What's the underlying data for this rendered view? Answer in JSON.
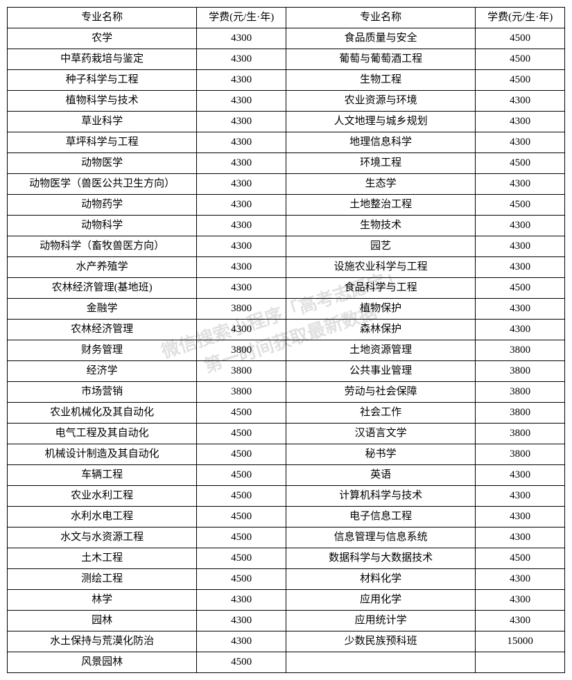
{
  "table": {
    "headers": {
      "name": "专业名称",
      "fee": "学费(元/生·年)"
    },
    "border_color": "#000000",
    "bg_color": "#ffffff",
    "font_size": 15,
    "rows": [
      {
        "l_name": "农学",
        "l_fee": "4300",
        "r_name": "食品质量与安全",
        "r_fee": "4500"
      },
      {
        "l_name": "中草药栽培与鉴定",
        "l_fee": "4300",
        "r_name": "葡萄与葡萄酒工程",
        "r_fee": "4500"
      },
      {
        "l_name": "种子科学与工程",
        "l_fee": "4300",
        "r_name": "生物工程",
        "r_fee": "4500"
      },
      {
        "l_name": "植物科学与技术",
        "l_fee": "4300",
        "r_name": "农业资源与环境",
        "r_fee": "4300"
      },
      {
        "l_name": "草业科学",
        "l_fee": "4300",
        "r_name": "人文地理与城乡规划",
        "r_fee": "4300"
      },
      {
        "l_name": "草坪科学与工程",
        "l_fee": "4300",
        "r_name": "地理信息科学",
        "r_fee": "4300"
      },
      {
        "l_name": "动物医学",
        "l_fee": "4300",
        "r_name": "环境工程",
        "r_fee": "4500"
      },
      {
        "l_name": "动物医学（兽医公共卫生方向）",
        "l_fee": "4300",
        "r_name": "生态学",
        "r_fee": "4300"
      },
      {
        "l_name": "动物药学",
        "l_fee": "4300",
        "r_name": "土地整治工程",
        "r_fee": "4500"
      },
      {
        "l_name": "动物科学",
        "l_fee": "4300",
        "r_name": "生物技术",
        "r_fee": "4300"
      },
      {
        "l_name": "动物科学（畜牧兽医方向）",
        "l_fee": "4300",
        "r_name": "园艺",
        "r_fee": "4300"
      },
      {
        "l_name": "水产养殖学",
        "l_fee": "4300",
        "r_name": "设施农业科学与工程",
        "r_fee": "4300"
      },
      {
        "l_name": "农林经济管理(基地班)",
        "l_fee": "4300",
        "r_name": "食品科学与工程",
        "r_fee": "4500"
      },
      {
        "l_name": "金融学",
        "l_fee": "3800",
        "r_name": "植物保护",
        "r_fee": "4300"
      },
      {
        "l_name": "农林经济管理",
        "l_fee": "4300",
        "r_name": "森林保护",
        "r_fee": "4300"
      },
      {
        "l_name": "财务管理",
        "l_fee": "3800",
        "r_name": "土地资源管理",
        "r_fee": "3800"
      },
      {
        "l_name": "经济学",
        "l_fee": "3800",
        "r_name": "公共事业管理",
        "r_fee": "3800"
      },
      {
        "l_name": "市场营销",
        "l_fee": "3800",
        "r_name": "劳动与社会保障",
        "r_fee": "3800"
      },
      {
        "l_name": "农业机械化及其自动化",
        "l_fee": "4500",
        "r_name": "社会工作",
        "r_fee": "3800"
      },
      {
        "l_name": "电气工程及其自动化",
        "l_fee": "4500",
        "r_name": "汉语言文学",
        "r_fee": "3800"
      },
      {
        "l_name": "机械设计制造及其自动化",
        "l_fee": "4500",
        "r_name": "秘书学",
        "r_fee": "3800"
      },
      {
        "l_name": "车辆工程",
        "l_fee": "4500",
        "r_name": "英语",
        "r_fee": "4300"
      },
      {
        "l_name": "农业水利工程",
        "l_fee": "4500",
        "r_name": "计算机科学与技术",
        "r_fee": "4300"
      },
      {
        "l_name": "水利水电工程",
        "l_fee": "4500",
        "r_name": "电子信息工程",
        "r_fee": "4300"
      },
      {
        "l_name": "水文与水资源工程",
        "l_fee": "4500",
        "r_name": "信息管理与信息系统",
        "r_fee": "4300"
      },
      {
        "l_name": "土木工程",
        "l_fee": "4500",
        "r_name": "数据科学与大数据技术",
        "r_fee": "4500"
      },
      {
        "l_name": "测绘工程",
        "l_fee": "4500",
        "r_name": "材料化学",
        "r_fee": "4300"
      },
      {
        "l_name": "林学",
        "l_fee": "4300",
        "r_name": "应用化学",
        "r_fee": "4300"
      },
      {
        "l_name": "园林",
        "l_fee": "4300",
        "r_name": "应用统计学",
        "r_fee": "4300"
      },
      {
        "l_name": "水土保持与荒漠化防治",
        "l_fee": "4300",
        "r_name": "少数民族预科班",
        "r_fee": "15000"
      },
      {
        "l_name": "风景园林",
        "l_fee": "4500",
        "r_name": "",
        "r_fee": ""
      }
    ]
  },
  "watermark": {
    "line1": "微信搜索小程序「高考志愿宝」",
    "line2": "第一时间获取最新数据",
    "color": "rgba(0,0,0,0.12)",
    "rotate_deg": -18,
    "font_size": 26
  }
}
